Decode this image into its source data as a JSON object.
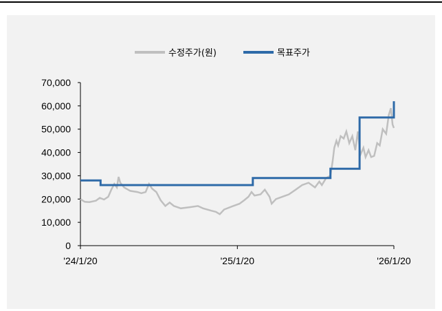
{
  "chart_data": {
    "type": "line",
    "title": "",
    "xlabel": "",
    "ylabel": "",
    "legend": [
      {
        "label": "수정주가(원)",
        "color": "#bfbfbf"
      },
      {
        "label": "목표주가",
        "color": "#2e6aa8"
      }
    ],
    "legend_placement": "top-center",
    "grid": false,
    "ylim": [
      0,
      70000
    ],
    "y_ticks": [
      0,
      10000,
      20000,
      30000,
      40000,
      50000,
      60000,
      70000
    ],
    "y_tick_labels": [
      "0",
      "10,000",
      "20,000",
      "30,000",
      "40,000",
      "50,000",
      "60,000",
      "70,000"
    ],
    "xlim": [
      "2024-01-20",
      "2026-01-20"
    ],
    "x_ticks": [
      "2024-01-20",
      "2025-01-20",
      "2026-01-20"
    ],
    "x_tick_labels": [
      "'24/1/20",
      "'25/1/20",
      "'26/1/20"
    ],
    "series": [
      {
        "name": "수정주가(원)",
        "color": "#bfbfbf",
        "kind": "line",
        "points": [
          [
            "2024-01-20",
            20000
          ],
          [
            "2024-01-30",
            18800
          ],
          [
            "2024-02-10",
            18700
          ],
          [
            "2024-02-25",
            19300
          ],
          [
            "2024-03-05",
            20500
          ],
          [
            "2024-03-15",
            19800
          ],
          [
            "2024-03-25",
            21000
          ],
          [
            "2024-04-01",
            24000
          ],
          [
            "2024-04-08",
            26500
          ],
          [
            "2024-04-14",
            25000
          ],
          [
            "2024-04-18",
            29500
          ],
          [
            "2024-04-22",
            27000
          ],
          [
            "2024-05-01",
            25000
          ],
          [
            "2024-05-15",
            23500
          ],
          [
            "2024-06-01",
            23000
          ],
          [
            "2024-06-10",
            22500
          ],
          [
            "2024-06-20",
            23000
          ],
          [
            "2024-06-28",
            26500
          ],
          [
            "2024-07-05",
            24500
          ],
          [
            "2024-07-15",
            23000
          ],
          [
            "2024-07-25",
            19500
          ],
          [
            "2024-08-05",
            17000
          ],
          [
            "2024-08-15",
            18500
          ],
          [
            "2024-08-25",
            17000
          ],
          [
            "2024-09-10",
            16000
          ],
          [
            "2024-10-01",
            16500
          ],
          [
            "2024-10-20",
            17000
          ],
          [
            "2024-11-01",
            16000
          ],
          [
            "2024-11-20",
            15000
          ],
          [
            "2024-12-01",
            14500
          ],
          [
            "2024-12-10",
            13500
          ],
          [
            "2024-12-20",
            15500
          ],
          [
            "2025-01-10",
            17000
          ],
          [
            "2025-01-25",
            18000
          ],
          [
            "2025-02-05",
            19500
          ],
          [
            "2025-02-15",
            21000
          ],
          [
            "2025-02-22",
            23000
          ],
          [
            "2025-03-01",
            21500
          ],
          [
            "2025-03-15",
            22000
          ],
          [
            "2025-03-25",
            24000
          ],
          [
            "2025-04-05",
            21000
          ],
          [
            "2025-04-10",
            18000
          ],
          [
            "2025-04-20",
            20000
          ],
          [
            "2025-05-05",
            21000
          ],
          [
            "2025-05-20",
            22000
          ],
          [
            "2025-06-05",
            24000
          ],
          [
            "2025-06-20",
            26000
          ],
          [
            "2025-07-05",
            27000
          ],
          [
            "2025-07-20",
            25000
          ],
          [
            "2025-07-30",
            27500
          ],
          [
            "2025-08-05",
            26000
          ],
          [
            "2025-08-15",
            29000
          ],
          [
            "2025-08-25",
            30000
          ],
          [
            "2025-08-30",
            36000
          ],
          [
            "2025-09-03",
            42000
          ],
          [
            "2025-09-08",
            45000
          ],
          [
            "2025-09-12",
            43000
          ],
          [
            "2025-09-18",
            47000
          ],
          [
            "2025-09-25",
            46000
          ],
          [
            "2025-10-01",
            49000
          ],
          [
            "2025-10-08",
            44000
          ],
          [
            "2025-10-15",
            47000
          ],
          [
            "2025-10-22",
            41000
          ],
          [
            "2025-10-28",
            49000
          ],
          [
            "2025-11-03",
            39000
          ],
          [
            "2025-11-10",
            42000
          ],
          [
            "2025-11-15",
            38000
          ],
          [
            "2025-11-22",
            41000
          ],
          [
            "2025-11-28",
            38000
          ],
          [
            "2025-12-05",
            38500
          ],
          [
            "2025-12-12",
            44000
          ],
          [
            "2025-12-18",
            43000
          ],
          [
            "2025-12-25",
            50000
          ],
          [
            "2026-01-02",
            48000
          ],
          [
            "2026-01-08",
            56000
          ],
          [
            "2026-01-13",
            59000
          ],
          [
            "2026-01-17",
            52000
          ],
          [
            "2026-01-20",
            50500
          ]
        ]
      },
      {
        "name": "목표주가",
        "color": "#2e6aa8",
        "kind": "step",
        "points": [
          [
            "2024-01-20",
            28000
          ],
          [
            "2024-03-07",
            26000
          ],
          [
            "2025-02-25",
            29000
          ],
          [
            "2025-08-25",
            33000
          ],
          [
            "2025-11-01",
            55000
          ],
          [
            "2026-01-20",
            62000
          ]
        ]
      }
    ]
  }
}
